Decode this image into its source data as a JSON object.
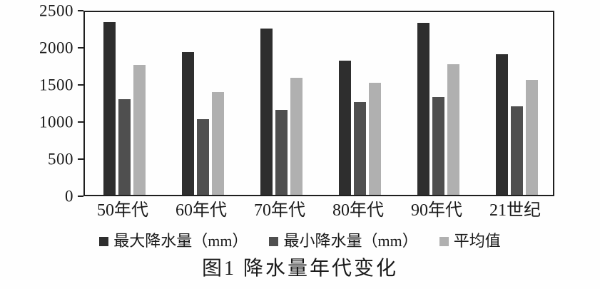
{
  "chart_data": {
    "type": "bar",
    "title": "图1 降水量年代变化",
    "categories": [
      "50年代",
      "60年代",
      "70年代",
      "80年代",
      "90年代",
      "21世纪"
    ],
    "series": [
      {
        "key": "max_precipitation",
        "name": "最大降水量（mm）",
        "color": "#2e2e2e",
        "values": [
          2360,
          1950,
          2280,
          1840,
          2350,
          1920
        ]
      },
      {
        "key": "min_precipitation",
        "name": "最小降水量（mm）",
        "color": "#4f4f4f",
        "values": [
          1310,
          1040,
          1160,
          1270,
          1340,
          1210
        ]
      },
      {
        "key": "average",
        "name": "平均值",
        "color": "#b0b0b0",
        "values": [
          1780,
          1410,
          1600,
          1530,
          1790,
          1570
        ]
      }
    ],
    "xlabel": "",
    "ylabel": "",
    "ylim": [
      0,
      2500
    ],
    "yticks": [
      0,
      500,
      1000,
      1500,
      2000,
      2500
    ],
    "grid": false,
    "legend_position": "bottom",
    "axis_color": "#1f1f1f"
  }
}
